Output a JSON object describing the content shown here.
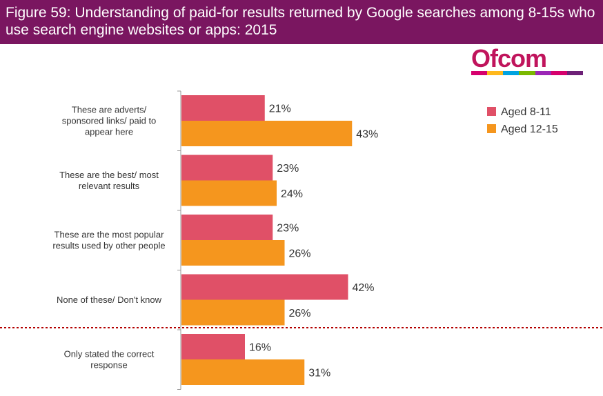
{
  "title": "Figure 59: Understanding of paid-for results returned by Google searches among 8-15s who use search engine websites or apps: 2015",
  "logo": {
    "text": "Ofcom",
    "strip_colors": [
      "#d6006d",
      "#ffb81c",
      "#00a3e0",
      "#7ab800",
      "#9b26b6",
      "#d6006d",
      "#6d2077"
    ]
  },
  "colors": {
    "series_1": "#e05067",
    "series_2": "#f5961e",
    "divider": "#b30000",
    "axis": "#999999"
  },
  "chart_data": {
    "type": "bar",
    "orientation": "horizontal",
    "title": "Figure 59: Understanding of paid-for results returned by Google searches among 8-15s who use search engine websites or apps: 2015",
    "categories": [
      [
        "These are adverts/",
        "sponsored links/ paid to",
        "appear here"
      ],
      [
        "These are the best/ most",
        "relevant results"
      ],
      [
        "These are the most popular",
        "results used by other people"
      ],
      [
        "None of these/ Don't know"
      ],
      [
        "Only stated the correct",
        "response"
      ]
    ],
    "series": [
      {
        "name": "Aged 8-11",
        "values": [
          21,
          23,
          23,
          42,
          16
        ],
        "labels": [
          "21%",
          "23%",
          "23%",
          "42%",
          "16%"
        ]
      },
      {
        "name": "Aged 12-15",
        "values": [
          43,
          24,
          26,
          26,
          31
        ],
        "labels": [
          "43%",
          "24%",
          "26%",
          "26%",
          "31%"
        ]
      }
    ],
    "xlim": [
      0,
      100
    ],
    "unit": "%",
    "legend_position": "top-right",
    "divider_after_category": 3
  }
}
